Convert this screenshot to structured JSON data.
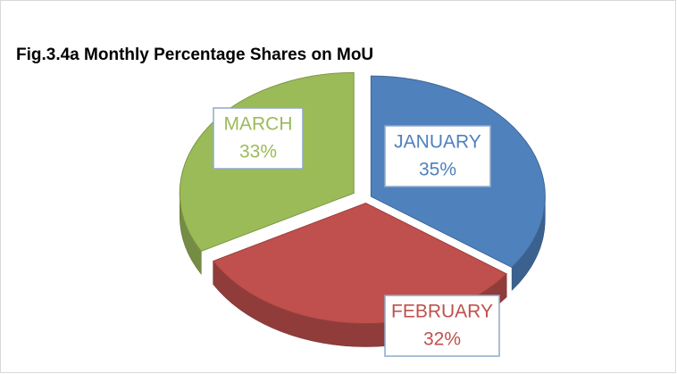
{
  "chart_data": {
    "type": "pie",
    "title": "Fig.3.4a Monthly Percentage Shares on MoU",
    "categories": [
      "JANUARY",
      "FEBRUARY",
      "MARCH"
    ],
    "values": [
      35,
      32,
      33
    ],
    "value_labels": [
      "35%",
      "32%",
      "33%"
    ],
    "colors": [
      "#4f81bd",
      "#c0504d",
      "#9bbb59"
    ]
  }
}
